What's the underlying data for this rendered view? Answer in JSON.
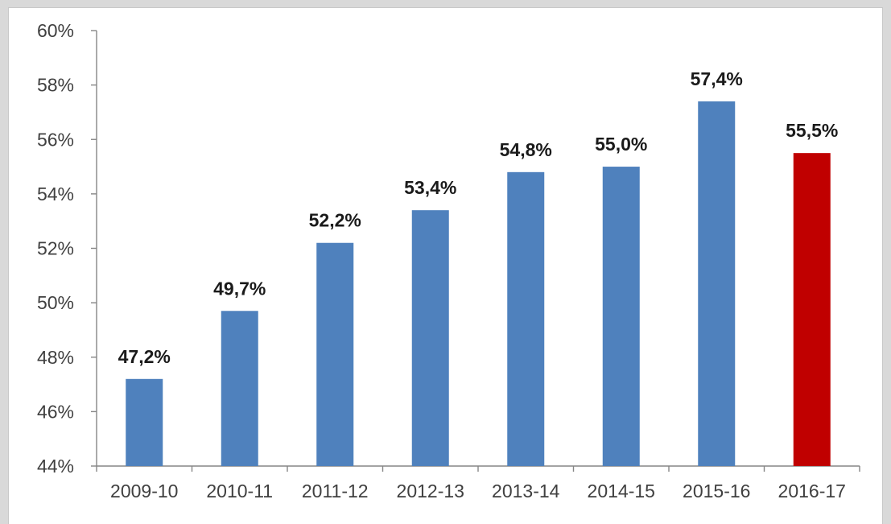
{
  "chart_data": {
    "type": "bar",
    "categories": [
      "2009-10",
      "2010-11",
      "2011-12",
      "2012-13",
      "2013-14",
      "2014-15",
      "2015-16",
      "2016-17"
    ],
    "values": [
      47.2,
      49.7,
      52.2,
      53.4,
      54.8,
      55.0,
      57.4,
      55.5
    ],
    "data_labels": [
      "47,2%",
      "49,7%",
      "52,2%",
      "53,4%",
      "54,8%",
      "55,0%",
      "57,4%",
      "55,5%"
    ],
    "ylim": [
      44,
      60
    ],
    "yticks": [
      44,
      46,
      48,
      50,
      52,
      54,
      56,
      58,
      60
    ],
    "ytick_labels": [
      "44%",
      "46%",
      "48%",
      "50%",
      "52%",
      "54%",
      "56%",
      "58%",
      "60%"
    ],
    "title": "",
    "xlabel": "",
    "ylabel": "",
    "grid": false,
    "colors": {
      "bar": "#4f81bd",
      "highlight": "#c00000",
      "highlight_index": 7
    }
  }
}
